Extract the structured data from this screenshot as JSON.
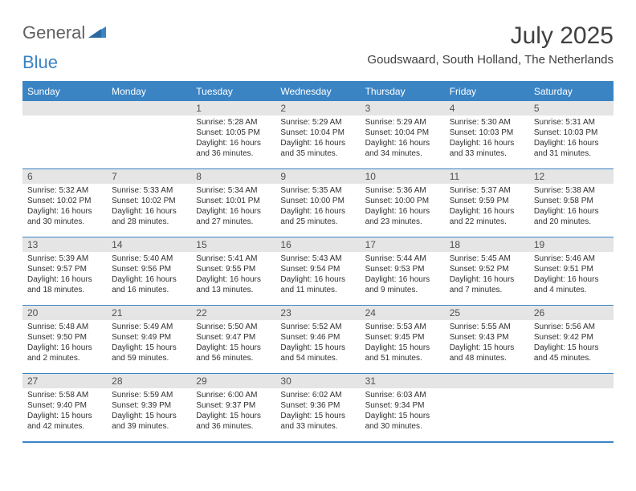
{
  "logo": {
    "general": "General",
    "blue": "Blue"
  },
  "title": "July 2025",
  "location": "Goudswaard, South Holland, The Netherlands",
  "colors": {
    "accent": "#3a84c4",
    "headerText": "#ffffff",
    "dayBarBg": "#e5e5e5",
    "text": "#303030",
    "titleText": "#404040",
    "logoGray": "#606060"
  },
  "dayHeaders": [
    "Sunday",
    "Monday",
    "Tuesday",
    "Wednesday",
    "Thursday",
    "Friday",
    "Saturday"
  ],
  "weeks": [
    [
      {
        "n": "",
        "sr": "",
        "ss": "",
        "dl": ""
      },
      {
        "n": "",
        "sr": "",
        "ss": "",
        "dl": ""
      },
      {
        "n": "1",
        "sr": "Sunrise: 5:28 AM",
        "ss": "Sunset: 10:05 PM",
        "dl": "Daylight: 16 hours and 36 minutes."
      },
      {
        "n": "2",
        "sr": "Sunrise: 5:29 AM",
        "ss": "Sunset: 10:04 PM",
        "dl": "Daylight: 16 hours and 35 minutes."
      },
      {
        "n": "3",
        "sr": "Sunrise: 5:29 AM",
        "ss": "Sunset: 10:04 PM",
        "dl": "Daylight: 16 hours and 34 minutes."
      },
      {
        "n": "4",
        "sr": "Sunrise: 5:30 AM",
        "ss": "Sunset: 10:03 PM",
        "dl": "Daylight: 16 hours and 33 minutes."
      },
      {
        "n": "5",
        "sr": "Sunrise: 5:31 AM",
        "ss": "Sunset: 10:03 PM",
        "dl": "Daylight: 16 hours and 31 minutes."
      }
    ],
    [
      {
        "n": "6",
        "sr": "Sunrise: 5:32 AM",
        "ss": "Sunset: 10:02 PM",
        "dl": "Daylight: 16 hours and 30 minutes."
      },
      {
        "n": "7",
        "sr": "Sunrise: 5:33 AM",
        "ss": "Sunset: 10:02 PM",
        "dl": "Daylight: 16 hours and 28 minutes."
      },
      {
        "n": "8",
        "sr": "Sunrise: 5:34 AM",
        "ss": "Sunset: 10:01 PM",
        "dl": "Daylight: 16 hours and 27 minutes."
      },
      {
        "n": "9",
        "sr": "Sunrise: 5:35 AM",
        "ss": "Sunset: 10:00 PM",
        "dl": "Daylight: 16 hours and 25 minutes."
      },
      {
        "n": "10",
        "sr": "Sunrise: 5:36 AM",
        "ss": "Sunset: 10:00 PM",
        "dl": "Daylight: 16 hours and 23 minutes."
      },
      {
        "n": "11",
        "sr": "Sunrise: 5:37 AM",
        "ss": "Sunset: 9:59 PM",
        "dl": "Daylight: 16 hours and 22 minutes."
      },
      {
        "n": "12",
        "sr": "Sunrise: 5:38 AM",
        "ss": "Sunset: 9:58 PM",
        "dl": "Daylight: 16 hours and 20 minutes."
      }
    ],
    [
      {
        "n": "13",
        "sr": "Sunrise: 5:39 AM",
        "ss": "Sunset: 9:57 PM",
        "dl": "Daylight: 16 hours and 18 minutes."
      },
      {
        "n": "14",
        "sr": "Sunrise: 5:40 AM",
        "ss": "Sunset: 9:56 PM",
        "dl": "Daylight: 16 hours and 16 minutes."
      },
      {
        "n": "15",
        "sr": "Sunrise: 5:41 AM",
        "ss": "Sunset: 9:55 PM",
        "dl": "Daylight: 16 hours and 13 minutes."
      },
      {
        "n": "16",
        "sr": "Sunrise: 5:43 AM",
        "ss": "Sunset: 9:54 PM",
        "dl": "Daylight: 16 hours and 11 minutes."
      },
      {
        "n": "17",
        "sr": "Sunrise: 5:44 AM",
        "ss": "Sunset: 9:53 PM",
        "dl": "Daylight: 16 hours and 9 minutes."
      },
      {
        "n": "18",
        "sr": "Sunrise: 5:45 AM",
        "ss": "Sunset: 9:52 PM",
        "dl": "Daylight: 16 hours and 7 minutes."
      },
      {
        "n": "19",
        "sr": "Sunrise: 5:46 AM",
        "ss": "Sunset: 9:51 PM",
        "dl": "Daylight: 16 hours and 4 minutes."
      }
    ],
    [
      {
        "n": "20",
        "sr": "Sunrise: 5:48 AM",
        "ss": "Sunset: 9:50 PM",
        "dl": "Daylight: 16 hours and 2 minutes."
      },
      {
        "n": "21",
        "sr": "Sunrise: 5:49 AM",
        "ss": "Sunset: 9:49 PM",
        "dl": "Daylight: 15 hours and 59 minutes."
      },
      {
        "n": "22",
        "sr": "Sunrise: 5:50 AM",
        "ss": "Sunset: 9:47 PM",
        "dl": "Daylight: 15 hours and 56 minutes."
      },
      {
        "n": "23",
        "sr": "Sunrise: 5:52 AM",
        "ss": "Sunset: 9:46 PM",
        "dl": "Daylight: 15 hours and 54 minutes."
      },
      {
        "n": "24",
        "sr": "Sunrise: 5:53 AM",
        "ss": "Sunset: 9:45 PM",
        "dl": "Daylight: 15 hours and 51 minutes."
      },
      {
        "n": "25",
        "sr": "Sunrise: 5:55 AM",
        "ss": "Sunset: 9:43 PM",
        "dl": "Daylight: 15 hours and 48 minutes."
      },
      {
        "n": "26",
        "sr": "Sunrise: 5:56 AM",
        "ss": "Sunset: 9:42 PM",
        "dl": "Daylight: 15 hours and 45 minutes."
      }
    ],
    [
      {
        "n": "27",
        "sr": "Sunrise: 5:58 AM",
        "ss": "Sunset: 9:40 PM",
        "dl": "Daylight: 15 hours and 42 minutes."
      },
      {
        "n": "28",
        "sr": "Sunrise: 5:59 AM",
        "ss": "Sunset: 9:39 PM",
        "dl": "Daylight: 15 hours and 39 minutes."
      },
      {
        "n": "29",
        "sr": "Sunrise: 6:00 AM",
        "ss": "Sunset: 9:37 PM",
        "dl": "Daylight: 15 hours and 36 minutes."
      },
      {
        "n": "30",
        "sr": "Sunrise: 6:02 AM",
        "ss": "Sunset: 9:36 PM",
        "dl": "Daylight: 15 hours and 33 minutes."
      },
      {
        "n": "31",
        "sr": "Sunrise: 6:03 AM",
        "ss": "Sunset: 9:34 PM",
        "dl": "Daylight: 15 hours and 30 minutes."
      },
      {
        "n": "",
        "sr": "",
        "ss": "",
        "dl": ""
      },
      {
        "n": "",
        "sr": "",
        "ss": "",
        "dl": ""
      }
    ]
  ]
}
